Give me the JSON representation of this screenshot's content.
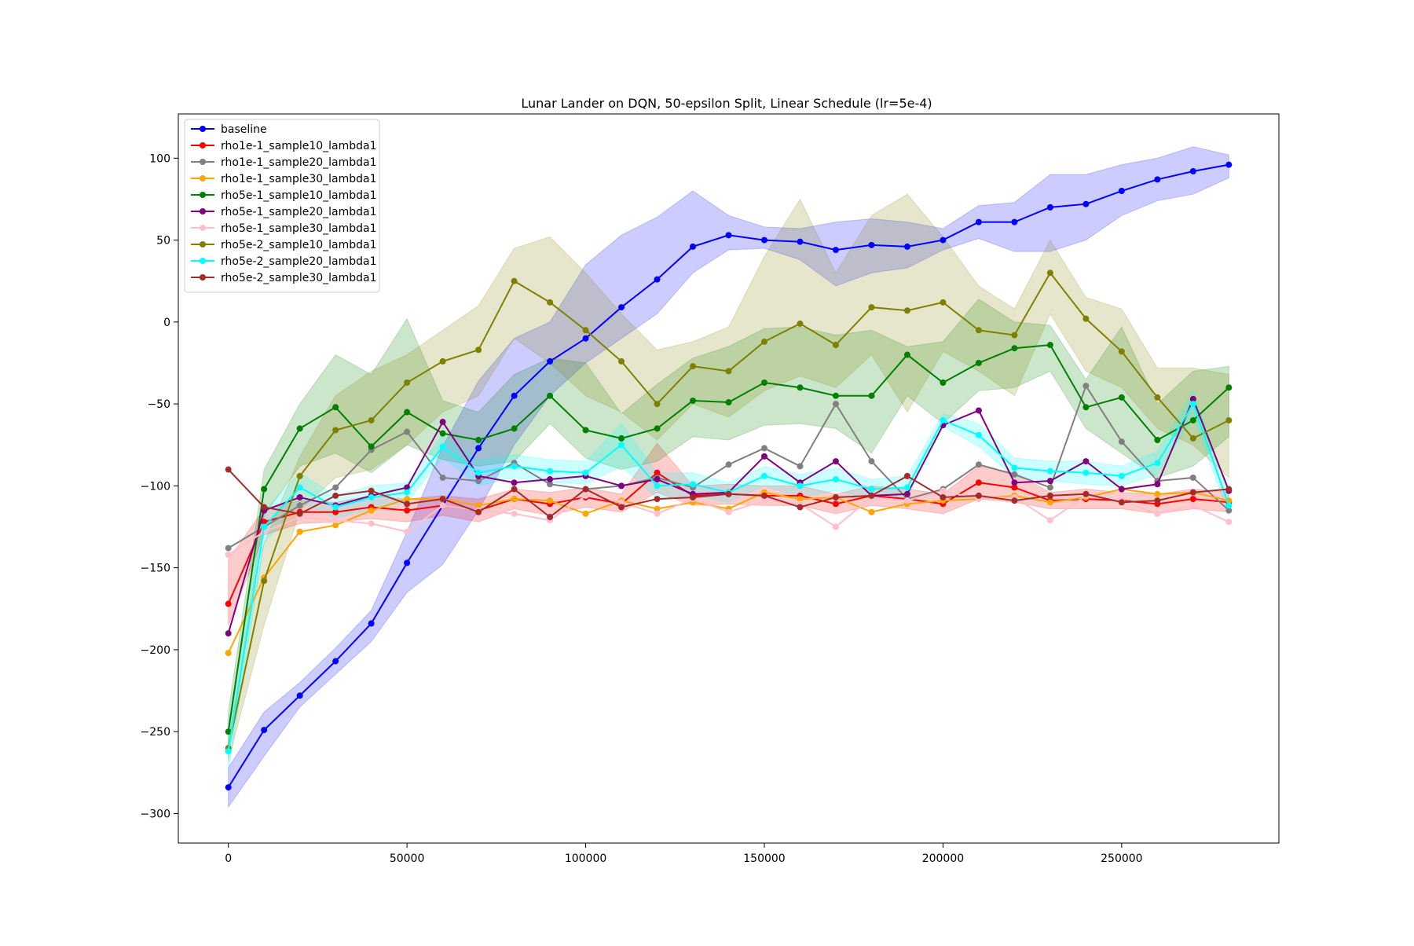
{
  "chart_data": {
    "type": "line",
    "title": "Lunar Lander on DQN, 50-epsilon Split, Linear Schedule (lr=5e-4)",
    "xlabel": "",
    "ylabel": "",
    "xlim": [
      -14000,
      294000
    ],
    "ylim": [
      -318,
      127
    ],
    "xticks": [
      0,
      50000,
      100000,
      150000,
      200000,
      250000
    ],
    "yticks": [
      -300,
      -250,
      -200,
      -150,
      -100,
      -50,
      0,
      50,
      100
    ],
    "grid": false,
    "legend_position": "top-left",
    "x": [
      0,
      10000,
      20000,
      30000,
      40000,
      50000,
      60000,
      70000,
      80000,
      90000,
      100000,
      110000,
      120000,
      130000,
      140000,
      150000,
      160000,
      170000,
      180000,
      190000,
      200000,
      210000,
      220000,
      230000,
      240000,
      250000,
      260000,
      270000,
      280000
    ],
    "series": [
      {
        "name": "baseline",
        "color": "#0000ff",
        "values": [
          -284,
          -249,
          -228,
          -207,
          -184,
          -147,
          -112,
          -77,
          -45,
          -24,
          -10,
          9,
          26,
          46,
          53,
          50,
          49,
          44,
          47,
          46,
          50,
          61,
          61,
          70,
          72,
          80,
          87,
          92,
          96
        ],
        "band_lower": [
          -296,
          -265,
          -235,
          -215,
          -195,
          -165,
          -148,
          -115,
          -75,
          -45,
          -25,
          -10,
          5,
          30,
          44,
          45,
          38,
          22,
          30,
          33,
          44,
          51,
          43,
          43,
          50,
          65,
          74,
          78,
          88
        ],
        "band_upper": [
          -272,
          -238,
          -220,
          -199,
          -176,
          -128,
          -76,
          -36,
          -10,
          0,
          35,
          53,
          64,
          80,
          65,
          58,
          57,
          61,
          63,
          61,
          57,
          71,
          73,
          90,
          90,
          96,
          100,
          107,
          102
        ]
      },
      {
        "name": "rho1e-1_sample10_lambda1",
        "color": "#ff0000",
        "values": [
          -172,
          -122,
          -116,
          -116,
          -113,
          -115,
          -112,
          -115,
          -108,
          -111,
          -107,
          -111,
          -92,
          -106,
          -105,
          -106,
          -106,
          -111,
          -106,
          -108,
          -111,
          -98,
          -101,
          -109,
          -108,
          -109,
          -111,
          -108,
          -110
        ],
        "band_lower": [
          -185,
          -130,
          -123,
          -122,
          -120,
          -122,
          -118,
          -122,
          -114,
          -118,
          -113,
          -116,
          -104,
          -112,
          -111,
          -112,
          -112,
          -117,
          -112,
          -114,
          -117,
          -108,
          -110,
          -114,
          -114,
          -114,
          -117,
          -114,
          -116
        ],
        "band_upper": [
          -145,
          -114,
          -109,
          -110,
          -106,
          -108,
          -106,
          -108,
          -102,
          -104,
          -101,
          -105,
          -74,
          -100,
          -99,
          -100,
          -100,
          -105,
          -100,
          -102,
          -105,
          -88,
          -92,
          -104,
          -102,
          -104,
          -105,
          -102,
          -104
        ]
      },
      {
        "name": "rho1e-1_sample20_lambda1",
        "color": "#808080",
        "values": [
          -138,
          -125,
          -112,
          -101,
          -78,
          -67,
          -95,
          -97,
          -86,
          -99,
          -102,
          -100,
          -95,
          -101,
          -87,
          -77,
          -88,
          -50,
          -85,
          -108,
          -102,
          -87,
          -93,
          -101,
          -39,
          -73,
          -97,
          -95,
          -115
        ]
      },
      {
        "name": "rho1e-1_sample30_lambda1",
        "color": "#ffa500",
        "values": [
          -202,
          -156,
          -128,
          -124,
          -115,
          -108,
          -108,
          -112,
          -108,
          -109,
          -117,
          -109,
          -114,
          -110,
          -114,
          -104,
          -108,
          -107,
          -116,
          -111,
          -109,
          -108,
          -106,
          -110,
          -107,
          -102,
          -105,
          -104,
          -109
        ]
      },
      {
        "name": "rho5e-1_sample10_lambda1",
        "color": "#008000",
        "values": [
          -250,
          -102,
          -65,
          -52,
          -76,
          -55,
          -68,
          -72,
          -65,
          -45,
          -66,
          -71,
          -65,
          -48,
          -49,
          -37,
          -40,
          -45,
          -45,
          -20,
          -37,
          -25,
          -16,
          -14,
          -52,
          -46,
          -72,
          -60,
          -40
        ],
        "band_lower": [
          -262,
          -118,
          -88,
          -80,
          -92,
          -75,
          -84,
          -88,
          -85,
          -62,
          -83,
          -90,
          -85,
          -70,
          -72,
          -63,
          -62,
          -65,
          -80,
          -45,
          -62,
          -42,
          -40,
          -30,
          -65,
          -80,
          -95,
          -88,
          -70
        ],
        "band_upper": [
          -238,
          -90,
          -50,
          -20,
          -32,
          2,
          -48,
          -55,
          -32,
          -22,
          -25,
          -56,
          -38,
          -22,
          -15,
          -4,
          -3,
          -8,
          -5,
          -15,
          -12,
          14,
          0,
          -2,
          -35,
          -3,
          -50,
          -30,
          -27
        ]
      },
      {
        "name": "rho5e-1_sample20_lambda1",
        "color": "#800080",
        "values": [
          -190,
          -115,
          -107,
          -112,
          -106,
          -101,
          -61,
          -94,
          -98,
          -96,
          -94,
          -100,
          -96,
          -105,
          -104,
          -82,
          -98,
          -85,
          -106,
          -105,
          -63,
          -54,
          -98,
          -97,
          -85,
          -102,
          -99,
          -47,
          -103
        ]
      },
      {
        "name": "rho5e-1_sample30_lambda1",
        "color": "#ffc0cb",
        "values": [
          -142,
          -128,
          -119,
          -121,
          -123,
          -128,
          -112,
          -115,
          -117,
          -121,
          -106,
          -110,
          -117,
          -108,
          -116,
          -109,
          -111,
          -125,
          -107,
          -109,
          -103,
          -108,
          -107,
          -121,
          -106,
          -109,
          -117,
          -112,
          -122
        ]
      },
      {
        "name": "rho5e-2_sample10_lambda1",
        "color": "#808000",
        "values": [
          -260,
          -158,
          -94,
          -66,
          -60,
          -37,
          -24,
          -17,
          25,
          12,
          -5,
          -24,
          -50,
          -27,
          -30,
          -12,
          -1,
          -14,
          9,
          7,
          12,
          -5,
          -8,
          30,
          2,
          -18,
          -46,
          -71,
          -60
        ],
        "band_lower": [
          -268,
          -185,
          -115,
          -95,
          -90,
          -75,
          -55,
          -45,
          -10,
          -25,
          -45,
          -55,
          -72,
          -50,
          -58,
          -42,
          -33,
          -40,
          -20,
          -55,
          -18,
          -30,
          -45,
          5,
          -30,
          -40,
          -65,
          -75,
          -95
        ],
        "band_upper": [
          -255,
          -135,
          -82,
          -45,
          -30,
          -20,
          -5,
          10,
          45,
          52,
          30,
          5,
          -17,
          -12,
          -3,
          40,
          75,
          30,
          65,
          78,
          52,
          22,
          8,
          50,
          15,
          8,
          -28,
          -28,
          -32
        ]
      },
      {
        "name": "rho5e-2_sample20_lambda1",
        "color": "#00ffff",
        "values": [
          -262,
          -125,
          -101,
          -113,
          -107,
          -104,
          -76,
          -92,
          -88,
          -91,
          -92,
          -75,
          -100,
          -99,
          -104,
          -94,
          -100,
          -96,
          -102,
          -101,
          -60,
          -69,
          -89,
          -91,
          -92,
          -94,
          -86,
          -50,
          -112
        ],
        "band_lower": [
          -275,
          -135,
          -110,
          -120,
          -114,
          -110,
          -83,
          -100,
          -95,
          -98,
          -99,
          -88,
          -108,
          -106,
          -110,
          -100,
          -107,
          -103,
          -108,
          -108,
          -64,
          -76,
          -95,
          -97,
          -99,
          -100,
          -93,
          -58,
          -118
        ],
        "band_upper": [
          -245,
          -115,
          -92,
          -106,
          -100,
          -98,
          -69,
          -84,
          -81,
          -84,
          -85,
          -62,
          -92,
          -92,
          -98,
          -88,
          -93,
          -89,
          -96,
          -94,
          -56,
          -62,
          -83,
          -85,
          -85,
          -88,
          -79,
          -42,
          -106
        ]
      },
      {
        "name": "rho5e-2_sample30_lambda1",
        "color": "#a52a2a",
        "values": [
          -90,
          -113,
          -117,
          -106,
          -103,
          -111,
          -108,
          -116,
          -102,
          -119,
          -102,
          -113,
          -108,
          -107,
          -105,
          -106,
          -113,
          -107,
          -106,
          -94,
          -107,
          -106,
          -109,
          -106,
          -105,
          -110,
          -109,
          -104,
          -102
        ]
      }
    ]
  }
}
